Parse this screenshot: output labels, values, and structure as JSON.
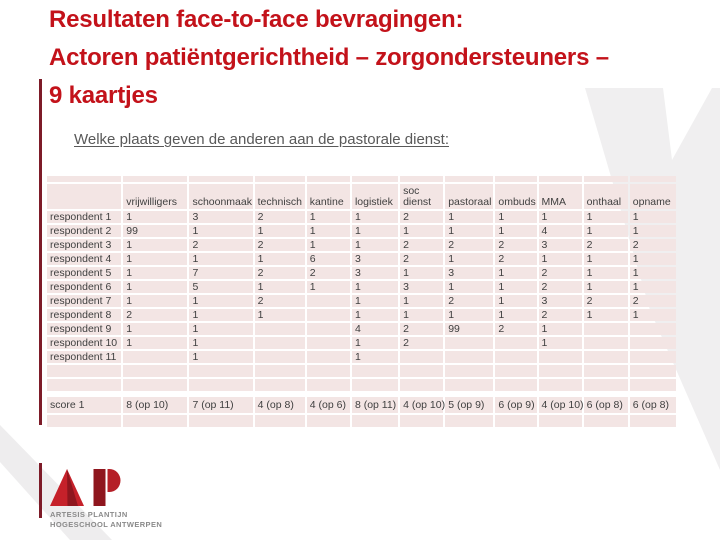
{
  "slide": {
    "title_lines": [
      "Resultaten face-to-face bevragingen:",
      "Actoren patiëntgerichtheid – zorgondersteuners –",
      "9 kaartjes"
    ],
    "subtitle": "Welke plaats geven de anderen aan de pastorale dienst:"
  },
  "table": {
    "columns": [
      "vrijwilligers",
      "schoonmaak",
      "technisch",
      "kantine",
      "logistiek",
      "soc\ndienst",
      "pastoraal",
      "ombuds",
      "MMA",
      "onthaal",
      "opname"
    ],
    "rows": [
      {
        "label": "respondent 1",
        "values": [
          "1",
          "3",
          "2",
          "1",
          "1",
          "2",
          "1",
          "1",
          "1",
          "1",
          "1"
        ]
      },
      {
        "label": "respondent 2",
        "values": [
          "99",
          "1",
          "1",
          "1",
          "1",
          "1",
          "1",
          "1",
          "4",
          "1",
          "1"
        ]
      },
      {
        "label": "respondent 3",
        "values": [
          "1",
          "2",
          "2",
          "1",
          "1",
          "2",
          "2",
          "2",
          "3",
          "2",
          "2"
        ]
      },
      {
        "label": "respondent 4",
        "values": [
          "1",
          "1",
          "1",
          "6",
          "3",
          "2",
          "1",
          "2",
          "1",
          "1",
          "1"
        ]
      },
      {
        "label": "respondent 5",
        "values": [
          "1",
          "7",
          "2",
          "2",
          "3",
          "1",
          "3",
          "1",
          "2",
          "1",
          "1"
        ]
      },
      {
        "label": "respondent 6",
        "values": [
          "1",
          "5",
          "1",
          "1",
          "1",
          "3",
          "1",
          "1",
          "2",
          "1",
          "1"
        ]
      },
      {
        "label": "respondent 7",
        "values": [
          "1",
          "1",
          "2",
          "",
          "1",
          "1",
          "2",
          "1",
          "3",
          "2",
          "2"
        ]
      },
      {
        "label": "respondent 8",
        "values": [
          "2",
          "1",
          "1",
          "",
          "1",
          "1",
          "1",
          "1",
          "2",
          "1",
          "1"
        ]
      },
      {
        "label": "respondent 9",
        "values": [
          "1",
          "1",
          "",
          "",
          "4",
          "2",
          "99",
          "2",
          "1",
          "",
          ""
        ]
      },
      {
        "label": "respondent 10",
        "values": [
          "1",
          "1",
          "",
          "",
          "1",
          "2",
          "",
          "",
          "1",
          "",
          ""
        ]
      },
      {
        "label": "respondent 11",
        "values": [
          "",
          "1",
          "",
          "",
          "1",
          "",
          "",
          "",
          "",
          "",
          ""
        ]
      }
    ],
    "score_row": {
      "label": "score 1",
      "values": [
        "8 (op 10)",
        "7 (op 11)",
        "4 (op 8)",
        "4 (op 6)",
        "8 (op 11)",
        "4 (op 10)",
        "5 (op 9)",
        "6 (op 9)",
        "4 (op 10)",
        "6 (op 8)",
        "6 (op 8)"
      ]
    }
  },
  "logo": {
    "monogram": "AP",
    "line1": "ARTESIS PLANTIJN",
    "line2": "HOGESCHOOL ANTWERPEN"
  },
  "colors": {
    "title_red": "#c3121a",
    "accent_maroon": "#7d1b28",
    "cell_pink": "#f3e5e4",
    "logo_red": "#c5212a",
    "logo_dark_red": "#8f161e",
    "watermark_gray": "#f0eff0"
  }
}
